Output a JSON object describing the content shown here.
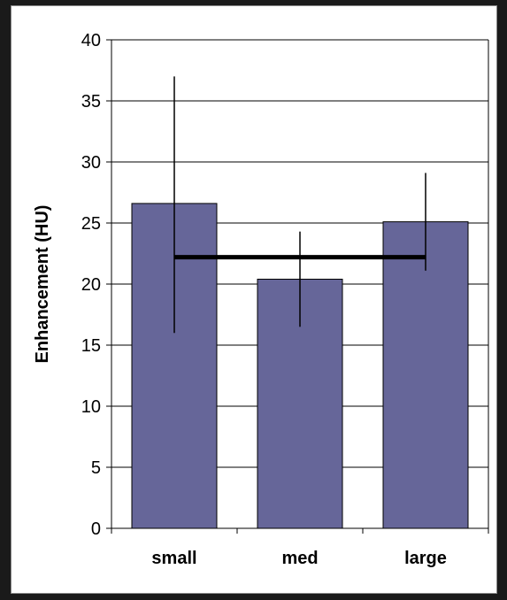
{
  "chart_data": {
    "type": "bar",
    "title": "",
    "xlabel": "",
    "ylabel": "Enhancement (HU)",
    "categories": [
      "small",
      "med",
      "large"
    ],
    "values": [
      26.6,
      20.4,
      25.1
    ],
    "error_bars": [
      {
        "low": 16.0,
        "high": 37.0
      },
      {
        "low": 16.5,
        "high": 24.3
      },
      {
        "low": 21.1,
        "high": 29.1
      }
    ],
    "mean_line": 22.2,
    "ylim": [
      0,
      40
    ],
    "yticks": [
      0,
      5,
      10,
      15,
      20,
      25,
      30,
      35,
      40
    ],
    "grid": true,
    "legend": "none",
    "colors": {
      "bar": "#666699",
      "bar_stroke": "#000000",
      "grid": "#000000",
      "mean_line": "#000000"
    }
  }
}
